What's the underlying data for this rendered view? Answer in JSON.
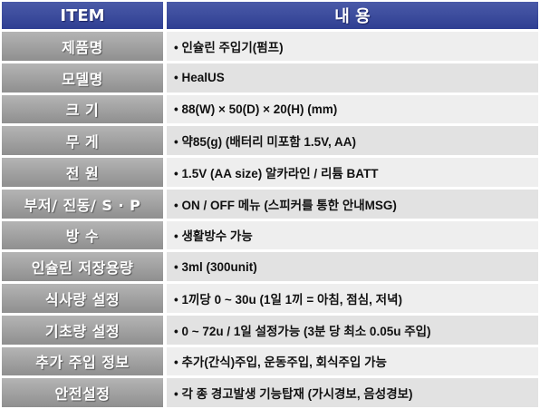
{
  "header": {
    "item": "ITEM",
    "content": "내 용"
  },
  "rows": [
    {
      "label": "제품명",
      "value": "• 인슐린 주입기(펌프)"
    },
    {
      "label": "모델명",
      "value": "• HealUS"
    },
    {
      "label": "크 기",
      "value": "• 88(W) × 50(D) × 20(H)  (mm)"
    },
    {
      "label": "무 게",
      "value": "• 약85(g) (배터리 미포함 1.5V, AA)"
    },
    {
      "label": "전    원",
      "value": "• 1.5V (AA size) 알카라인 / 리튬 BATT"
    },
    {
      "label": "부저/ 진동/ S · P",
      "value": "•  ON / OFF 메뉴 (스피커를 통한 안내MSG)"
    },
    {
      "label": "방    수",
      "value": "• 생활방수 가능"
    },
    {
      "label": "인슐린 저장용량",
      "value": "•  3ml (300unit)"
    },
    {
      "label": "식사량 설정",
      "value": "• 1끼당 0 ~ 30u (1일 1끼 = 아침, 점심, 저녁)"
    },
    {
      "label": "기초량 설정",
      "value": "• 0 ~ 72u / 1일 설정가능 (3분 당 최소 0.05u 주입)"
    },
    {
      "label": "추가 주입 정보",
      "value": "• 추가(간식)주입, 운동주입, 회식주입 가능"
    },
    {
      "label": "안전설정",
      "value": "• 각 종 경고발생 기능탑재 (가시경보, 음성경보)"
    }
  ]
}
